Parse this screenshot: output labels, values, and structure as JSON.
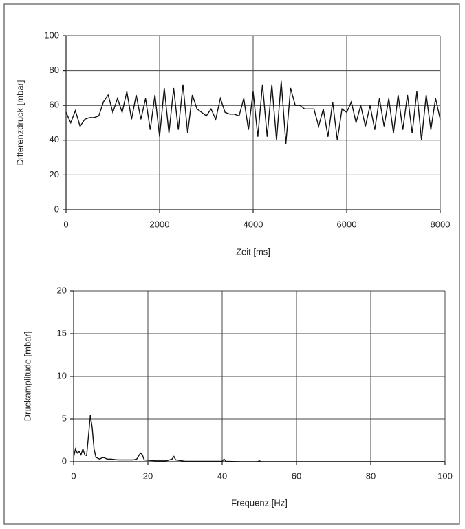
{
  "chart_data": [
    {
      "type": "line",
      "xlabel": "Zeit [ms]",
      "ylabel": "Differenzdruck [mbar]",
      "x": [
        0,
        100,
        200,
        300,
        400,
        500,
        600,
        700,
        800,
        900,
        1000,
        1100,
        1200,
        1300,
        1400,
        1500,
        1600,
        1700,
        1800,
        1900,
        2000,
        2100,
        2200,
        2300,
        2400,
        2500,
        2600,
        2700,
        2800,
        2900,
        3000,
        3100,
        3200,
        3300,
        3400,
        3500,
        3600,
        3700,
        3800,
        3900,
        4000,
        4100,
        4200,
        4300,
        4400,
        4500,
        4600,
        4700,
        4800,
        4900,
        5000,
        5100,
        5200,
        5300,
        5400,
        5500,
        5600,
        5700,
        5800,
        5900,
        6000,
        6100,
        6200,
        6300,
        6400,
        6500,
        6600,
        6700,
        6800,
        6900,
        7000,
        7100,
        7200,
        7300,
        7400,
        7500,
        7600,
        7700,
        7800,
        7900,
        8000
      ],
      "series": [
        {
          "color": "#111111",
          "values": [
            56,
            50,
            57,
            48,
            52,
            53,
            53,
            54,
            62,
            66,
            56,
            64,
            56,
            68,
            52,
            66,
            52,
            64,
            46,
            66,
            42,
            70,
            44,
            70,
            46,
            72,
            44,
            66,
            58,
            56,
            54,
            58,
            52,
            64,
            56,
            55,
            55,
            54,
            64,
            46,
            68,
            42,
            72,
            42,
            72,
            40,
            74,
            38,
            70,
            60,
            60,
            58,
            58,
            58,
            48,
            58,
            42,
            62,
            40,
            58,
            56,
            62,
            50,
            60,
            48,
            60,
            46,
            64,
            48,
            64,
            44,
            66,
            46,
            66,
            44,
            68,
            40,
            66,
            46,
            64,
            52
          ]
        }
      ],
      "xlim": [
        0,
        8000
      ],
      "xticks": [
        0,
        2000,
        4000,
        6000,
        8000
      ],
      "ylim": [
        0,
        100
      ],
      "yticks": [
        0,
        20,
        40,
        60,
        80,
        100
      ],
      "grid": true
    },
    {
      "type": "line",
      "xlabel": "Frequenz [Hz]",
      "ylabel": "Druckamplitude [mbar]",
      "x": [
        0,
        0.5,
        1,
        1.5,
        2,
        2.5,
        3,
        3.5,
        4,
        4.5,
        5,
        5.5,
        6,
        7,
        8,
        9,
        10,
        12,
        14,
        16,
        17,
        18,
        18.5,
        19,
        22,
        25,
        26.5,
        27,
        27.5,
        30,
        35,
        40,
        40.5,
        41,
        45,
        49.5,
        50,
        50.5,
        60,
        80,
        100
      ],
      "series": [
        {
          "color": "#111111",
          "values": [
            0.5,
            1.5,
            1,
            1.2,
            0.8,
            1.5,
            0.8,
            0.7,
            3,
            5.4,
            4,
            1.5,
            0.5,
            0.3,
            0.5,
            0.3,
            0.3,
            0.2,
            0.2,
            0.2,
            0.3,
            1,
            0.8,
            0.2,
            0.1,
            0.1,
            0.3,
            0.6,
            0.2,
            0.05,
            0.05,
            0.05,
            0.3,
            0.05,
            0,
            0,
            0.1,
            0,
            0,
            0,
            0
          ]
        }
      ],
      "xlim": [
        0,
        100
      ],
      "xticks": [
        0,
        20,
        40,
        60,
        80,
        100
      ],
      "ylim": [
        0,
        20
      ],
      "yticks": [
        0,
        5,
        10,
        15,
        20
      ],
      "grid": true
    }
  ]
}
